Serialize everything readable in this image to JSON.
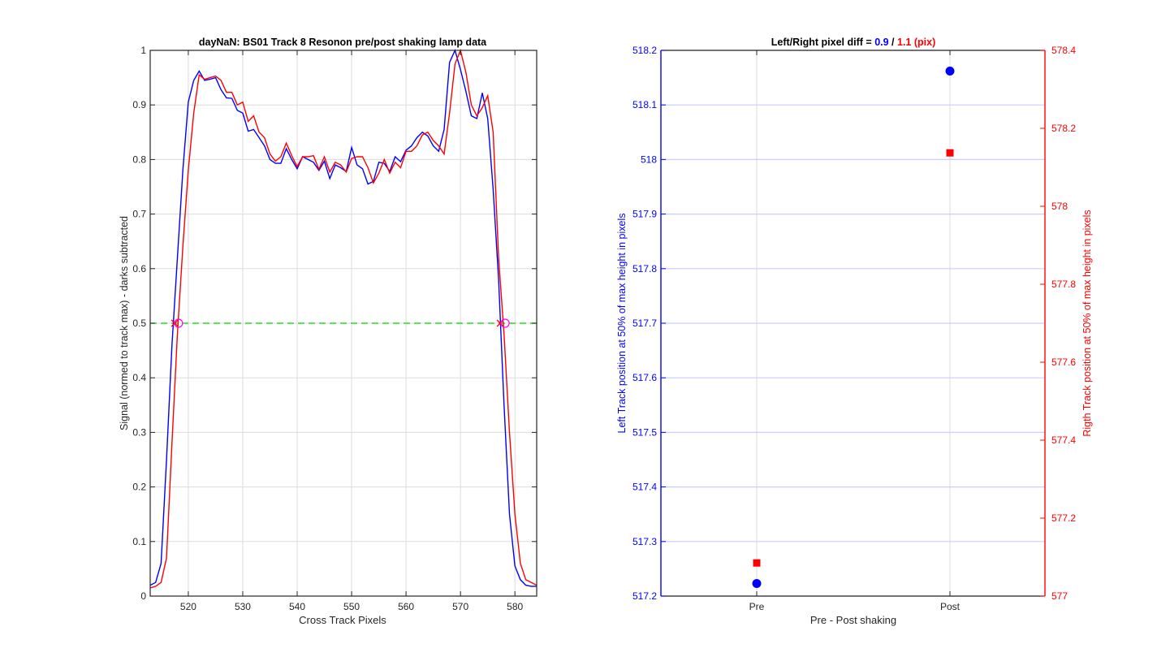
{
  "chart_data": [
    {
      "type": "line",
      "title": "dayNaN: BS01  Track 8 Resonon pre/post shaking lamp data",
      "xlabel": "Cross Track Pixels",
      "ylabel": "Signal (normed to track max) - darks subtracted",
      "xlim": [
        513,
        584
      ],
      "ylim": [
        0,
        1
      ],
      "grid": true,
      "xticks": [
        520,
        530,
        540,
        550,
        560,
        570,
        580
      ],
      "yticks": [
        0,
        0.1,
        0.2,
        0.3,
        0.4,
        0.5,
        0.6,
        0.7,
        0.8,
        0.9,
        1
      ],
      "x": [
        513,
        514,
        515,
        516,
        517,
        518,
        519,
        520,
        521,
        522,
        523,
        524,
        525,
        526,
        527,
        528,
        529,
        530,
        531,
        532,
        533,
        534,
        535,
        536,
        537,
        538,
        539,
        540,
        541,
        542,
        543,
        544,
        545,
        546,
        547,
        548,
        549,
        550,
        551,
        552,
        553,
        554,
        555,
        556,
        557,
        558,
        559,
        560,
        561,
        562,
        563,
        564,
        565,
        566,
        567,
        568,
        569,
        570,
        571,
        572,
        573,
        574,
        575,
        576,
        577,
        578,
        579,
        580,
        581,
        582,
        583,
        584
      ],
      "series": [
        {
          "color": "#0000ff",
          "values": [
            0.02,
            0.025,
            0.06,
            0.25,
            0.46,
            0.62,
            0.78,
            0.905,
            0.945,
            0.962,
            0.945,
            0.947,
            0.95,
            0.928,
            0.913,
            0.912,
            0.89,
            0.885,
            0.852,
            0.855,
            0.84,
            0.825,
            0.8,
            0.793,
            0.793,
            0.82,
            0.8,
            0.783,
            0.805,
            0.8,
            0.795,
            0.78,
            0.797,
            0.765,
            0.79,
            0.785,
            0.778,
            0.822,
            0.79,
            0.783,
            0.755,
            0.76,
            0.795,
            0.793,
            0.778,
            0.805,
            0.796,
            0.817,
            0.825,
            0.84,
            0.85,
            0.843,
            0.825,
            0.815,
            0.855,
            0.978,
            1.0,
            0.965,
            0.925,
            0.88,
            0.875,
            0.922,
            0.875,
            0.745,
            0.58,
            0.35,
            0.15,
            0.055,
            0.03,
            0.02,
            0.018,
            0.018
          ]
        },
        {
          "color": "#ff0000",
          "values": [
            0.015,
            0.018,
            0.025,
            0.07,
            0.28,
            0.48,
            0.64,
            0.78,
            0.885,
            0.955,
            0.947,
            0.95,
            0.953,
            0.945,
            0.923,
            0.923,
            0.9,
            0.905,
            0.87,
            0.88,
            0.85,
            0.84,
            0.81,
            0.797,
            0.805,
            0.83,
            0.807,
            0.787,
            0.805,
            0.805,
            0.807,
            0.782,
            0.805,
            0.777,
            0.795,
            0.79,
            0.777,
            0.802,
            0.805,
            0.805,
            0.785,
            0.757,
            0.775,
            0.8,
            0.775,
            0.795,
            0.785,
            0.815,
            0.815,
            0.825,
            0.845,
            0.85,
            0.835,
            0.825,
            0.81,
            0.885,
            0.975,
            1.0,
            0.96,
            0.9,
            0.88,
            0.895,
            0.917,
            0.85,
            0.62,
            0.48,
            0.3,
            0.15,
            0.06,
            0.03,
            0.025,
            0.02
          ]
        }
      ],
      "threshold": 0.5,
      "half_max_markers": {
        "x_marks": [
          517.5,
          577.3
        ],
        "o_marks": [
          518.2,
          578.2
        ]
      }
    },
    {
      "type": "scatter",
      "title_prefix": "Left/Right pixel diff = ",
      "title_blue": "0.9",
      "title_sep": " / ",
      "title_red": "1.1 (pix)",
      "categories": [
        "Pre",
        "Post"
      ],
      "xlabel": "Pre - Post shaking",
      "ylabel_left": "Left Track position at 50% of max height in pixels",
      "ylabel_right": "Rigth Track position at 50% of max height in pixels",
      "ylim_left": [
        517.2,
        518.2
      ],
      "ylim_right": [
        577,
        578.4
      ],
      "yticks_left": [
        "517.2",
        "517.3",
        "517.4",
        "517.5",
        "517.6",
        "517.7",
        "517.8",
        "517.9",
        "518",
        "518.1",
        "518.2"
      ],
      "yticks_right": [
        "577",
        "577.2",
        "577.4",
        "577.6",
        "577.8",
        "578",
        "578.2",
        "578.4"
      ],
      "left_values": [
        517.223,
        518.162
      ],
      "right_values": [
        577.085,
        578.137
      ],
      "left_color": "#0000ff",
      "right_color": "#ff0000"
    }
  ]
}
